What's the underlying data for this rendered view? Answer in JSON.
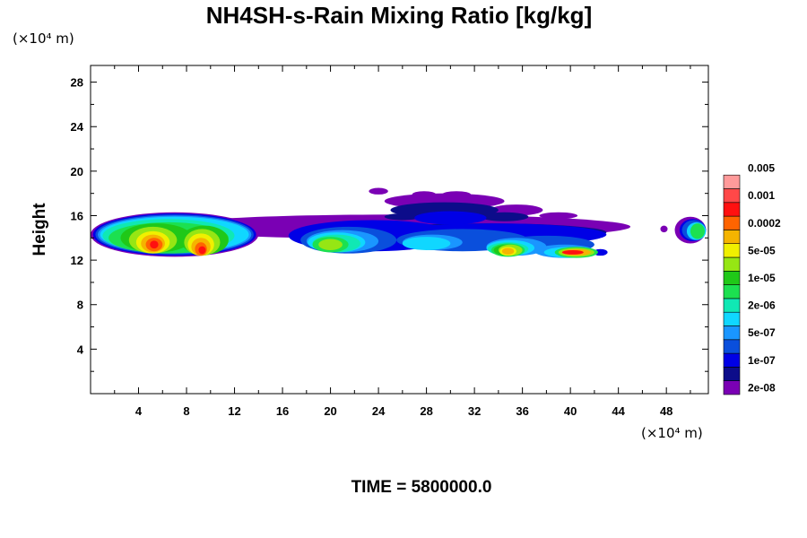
{
  "chart_data": {
    "type": "contour",
    "title": "NH4SH-s-Rain Mixing Ratio [kg/kg]",
    "ylabel": "Height",
    "xunit": "(×10⁴ m)",
    "yunit": "(×10⁴ m)",
    "footer": "TIME = 5800000.0",
    "xlim": [
      0,
      51.5
    ],
    "ylim": [
      0,
      29.5
    ],
    "xticks": [
      4,
      8,
      12,
      16,
      20,
      24,
      28,
      32,
      36,
      40,
      44,
      48
    ],
    "yticks": [
      4,
      8,
      12,
      16,
      20,
      24,
      28
    ],
    "colorbar": {
      "colors": [
        "#7a00b4",
        "#0c0c8a",
        "#0000e6",
        "#0a4fdc",
        "#1a96ff",
        "#10d7ff",
        "#10e8b4",
        "#1ce050",
        "#20c818",
        "#96e614",
        "#f0f000",
        "#f5b400",
        "#ff6400",
        "#ff1010",
        "#ff4848",
        "#ff9a9a"
      ],
      "labels": [
        "2e-08",
        "1e-07",
        "5e-07",
        "2e-06",
        "1e-05",
        "5e-05",
        "0.0002",
        "0.001",
        "0.005"
      ]
    },
    "cloud_layers": [
      {
        "level": 0,
        "color": "#7a00b4",
        "blobs": [
          {
            "cx": 25.5,
            "cy": 15.0,
            "rx": 19.5,
            "ry": 1.1
          },
          {
            "cx": 29.5,
            "cy": 17.3,
            "rx": 5.0,
            "ry": 0.7
          },
          {
            "cx": 24.0,
            "cy": 18.2,
            "rx": 0.8,
            "ry": 0.3
          },
          {
            "cx": 27.8,
            "cy": 17.9,
            "rx": 1.0,
            "ry": 0.3
          },
          {
            "cx": 30.5,
            "cy": 17.9,
            "rx": 1.2,
            "ry": 0.3
          },
          {
            "cx": 35.5,
            "cy": 16.5,
            "rx": 2.2,
            "ry": 0.5
          },
          {
            "cx": 39.0,
            "cy": 16.0,
            "rx": 1.6,
            "ry": 0.3
          },
          {
            "cx": 7.0,
            "cy": 14.3,
            "rx": 7.0,
            "ry": 2.0
          },
          {
            "cx": 50.0,
            "cy": 14.7,
            "rx": 1.3,
            "ry": 1.2
          },
          {
            "cx": 47.8,
            "cy": 14.8,
            "rx": 0.3,
            "ry": 0.3
          }
        ]
      },
      {
        "level": 1,
        "color": "#0c0c8a",
        "blobs": [
          {
            "cx": 29.5,
            "cy": 16.5,
            "rx": 4.5,
            "ry": 0.7
          },
          {
            "cx": 34.5,
            "cy": 15.9,
            "rx": 2.0,
            "ry": 0.4
          },
          {
            "cx": 26.0,
            "cy": 15.9,
            "rx": 1.5,
            "ry": 0.3
          },
          {
            "cx": 33.0,
            "cy": 14.5,
            "rx": 10.0,
            "ry": 0.8
          }
        ]
      },
      {
        "level": 2,
        "color": "#0000e6",
        "blobs": [
          {
            "cx": 23.5,
            "cy": 14.2,
            "rx": 7.0,
            "ry": 1.4
          },
          {
            "cx": 33.5,
            "cy": 14.3,
            "rx": 9.5,
            "ry": 1.0
          },
          {
            "cx": 30.0,
            "cy": 15.8,
            "rx": 3.0,
            "ry": 0.6
          },
          {
            "cx": 7.0,
            "cy": 14.3,
            "rx": 6.8,
            "ry": 1.9
          },
          {
            "cx": 50.2,
            "cy": 14.7,
            "rx": 1.1,
            "ry": 1.0
          },
          {
            "cx": 42.5,
            "cy": 12.7,
            "rx": 0.6,
            "ry": 0.3
          }
        ]
      },
      {
        "level": 3,
        "color": "#0a4fdc",
        "blobs": [
          {
            "cx": 7.0,
            "cy": 14.3,
            "rx": 6.6,
            "ry": 1.8
          },
          {
            "cx": 21.5,
            "cy": 13.8,
            "rx": 4.0,
            "ry": 1.2
          },
          {
            "cx": 31.0,
            "cy": 13.8,
            "rx": 5.5,
            "ry": 1.0
          },
          {
            "cx": 38.0,
            "cy": 13.4,
            "rx": 4.0,
            "ry": 0.8
          },
          {
            "cx": 50.3,
            "cy": 14.7,
            "rx": 1.0,
            "ry": 0.9
          }
        ]
      },
      {
        "level": 4,
        "color": "#1a96ff",
        "blobs": [
          {
            "cx": 7.0,
            "cy": 14.3,
            "rx": 6.4,
            "ry": 1.7
          },
          {
            "cx": 21.0,
            "cy": 13.7,
            "rx": 3.0,
            "ry": 1.0
          },
          {
            "cx": 28.5,
            "cy": 13.6,
            "rx": 2.5,
            "ry": 0.7
          },
          {
            "cx": 35.5,
            "cy": 13.2,
            "rx": 2.5,
            "ry": 0.8
          },
          {
            "cx": 39.5,
            "cy": 12.8,
            "rx": 2.5,
            "ry": 0.6
          }
        ]
      },
      {
        "level": 5,
        "color": "#10d7ff",
        "blobs": [
          {
            "cx": 7.0,
            "cy": 14.3,
            "rx": 6.2,
            "ry": 1.6
          },
          {
            "cx": 20.5,
            "cy": 13.6,
            "rx": 2.4,
            "ry": 0.9
          },
          {
            "cx": 28.0,
            "cy": 13.5,
            "rx": 2.0,
            "ry": 0.6
          },
          {
            "cx": 35.0,
            "cy": 13.1,
            "rx": 2.0,
            "ry": 0.7
          },
          {
            "cx": 40.0,
            "cy": 12.7,
            "rx": 2.2,
            "ry": 0.5
          },
          {
            "cx": 50.5,
            "cy": 14.6,
            "rx": 0.8,
            "ry": 0.8
          }
        ]
      },
      {
        "level": 6,
        "color": "#10e8b4",
        "blobs": [
          {
            "cx": 6.5,
            "cy": 14.2,
            "rx": 5.5,
            "ry": 1.5
          },
          {
            "cx": 20.5,
            "cy": 13.5,
            "rx": 2.0,
            "ry": 0.8
          },
          {
            "cx": 34.8,
            "cy": 13.0,
            "rx": 1.7,
            "ry": 0.6
          }
        ]
      },
      {
        "level": 7,
        "color": "#1ce050",
        "blobs": [
          {
            "cx": 6.5,
            "cy": 14.0,
            "rx": 5.0,
            "ry": 1.4
          },
          {
            "cx": 20.0,
            "cy": 13.4,
            "rx": 1.5,
            "ry": 0.7
          },
          {
            "cx": 34.8,
            "cy": 12.9,
            "rx": 1.4,
            "ry": 0.6
          },
          {
            "cx": 40.5,
            "cy": 12.7,
            "rx": 1.8,
            "ry": 0.5
          },
          {
            "cx": 50.6,
            "cy": 14.6,
            "rx": 0.6,
            "ry": 0.7
          }
        ]
      },
      {
        "level": 8,
        "color": "#20c818",
        "blobs": [
          {
            "cx": 5.5,
            "cy": 14.0,
            "rx": 3.0,
            "ry": 1.3
          },
          {
            "cx": 9.5,
            "cy": 13.8,
            "rx": 2.0,
            "ry": 1.3
          },
          {
            "cx": 34.8,
            "cy": 12.9,
            "rx": 1.2,
            "ry": 0.5
          }
        ]
      },
      {
        "level": 9,
        "color": "#96e614",
        "blobs": [
          {
            "cx": 5.2,
            "cy": 13.8,
            "rx": 2.0,
            "ry": 1.2
          },
          {
            "cx": 9.3,
            "cy": 13.6,
            "rx": 1.5,
            "ry": 1.2
          },
          {
            "cx": 20.0,
            "cy": 13.4,
            "rx": 1.0,
            "ry": 0.5
          },
          {
            "cx": 35.0,
            "cy": 12.9,
            "rx": 1.0,
            "ry": 0.5
          },
          {
            "cx": 40.5,
            "cy": 12.7,
            "rx": 1.5,
            "ry": 0.4
          }
        ]
      },
      {
        "level": 10,
        "color": "#f0f000",
        "blobs": [
          {
            "cx": 5.2,
            "cy": 13.6,
            "rx": 1.4,
            "ry": 1.0
          },
          {
            "cx": 9.2,
            "cy": 13.4,
            "rx": 1.1,
            "ry": 1.0
          },
          {
            "cx": 34.8,
            "cy": 12.8,
            "rx": 0.7,
            "ry": 0.4
          }
        ]
      },
      {
        "level": 11,
        "color": "#f5b400",
        "blobs": [
          {
            "cx": 5.2,
            "cy": 13.5,
            "rx": 1.0,
            "ry": 0.8
          },
          {
            "cx": 9.2,
            "cy": 13.2,
            "rx": 0.8,
            "ry": 0.8
          },
          {
            "cx": 34.8,
            "cy": 12.8,
            "rx": 0.5,
            "ry": 0.3
          },
          {
            "cx": 40.5,
            "cy": 12.7,
            "rx": 1.2,
            "ry": 0.3
          }
        ]
      },
      {
        "level": 12,
        "color": "#ff6400",
        "blobs": [
          {
            "cx": 5.3,
            "cy": 13.4,
            "rx": 0.7,
            "ry": 0.6
          },
          {
            "cx": 9.2,
            "cy": 13.0,
            "rx": 0.5,
            "ry": 0.6
          }
        ]
      },
      {
        "level": 13,
        "color": "#ff1010",
        "blobs": [
          {
            "cx": 5.3,
            "cy": 13.4,
            "rx": 0.35,
            "ry": 0.35
          },
          {
            "cx": 9.3,
            "cy": 12.9,
            "rx": 0.3,
            "ry": 0.35
          },
          {
            "cx": 40.2,
            "cy": 12.7,
            "rx": 0.9,
            "ry": 0.2
          }
        ]
      }
    ]
  }
}
